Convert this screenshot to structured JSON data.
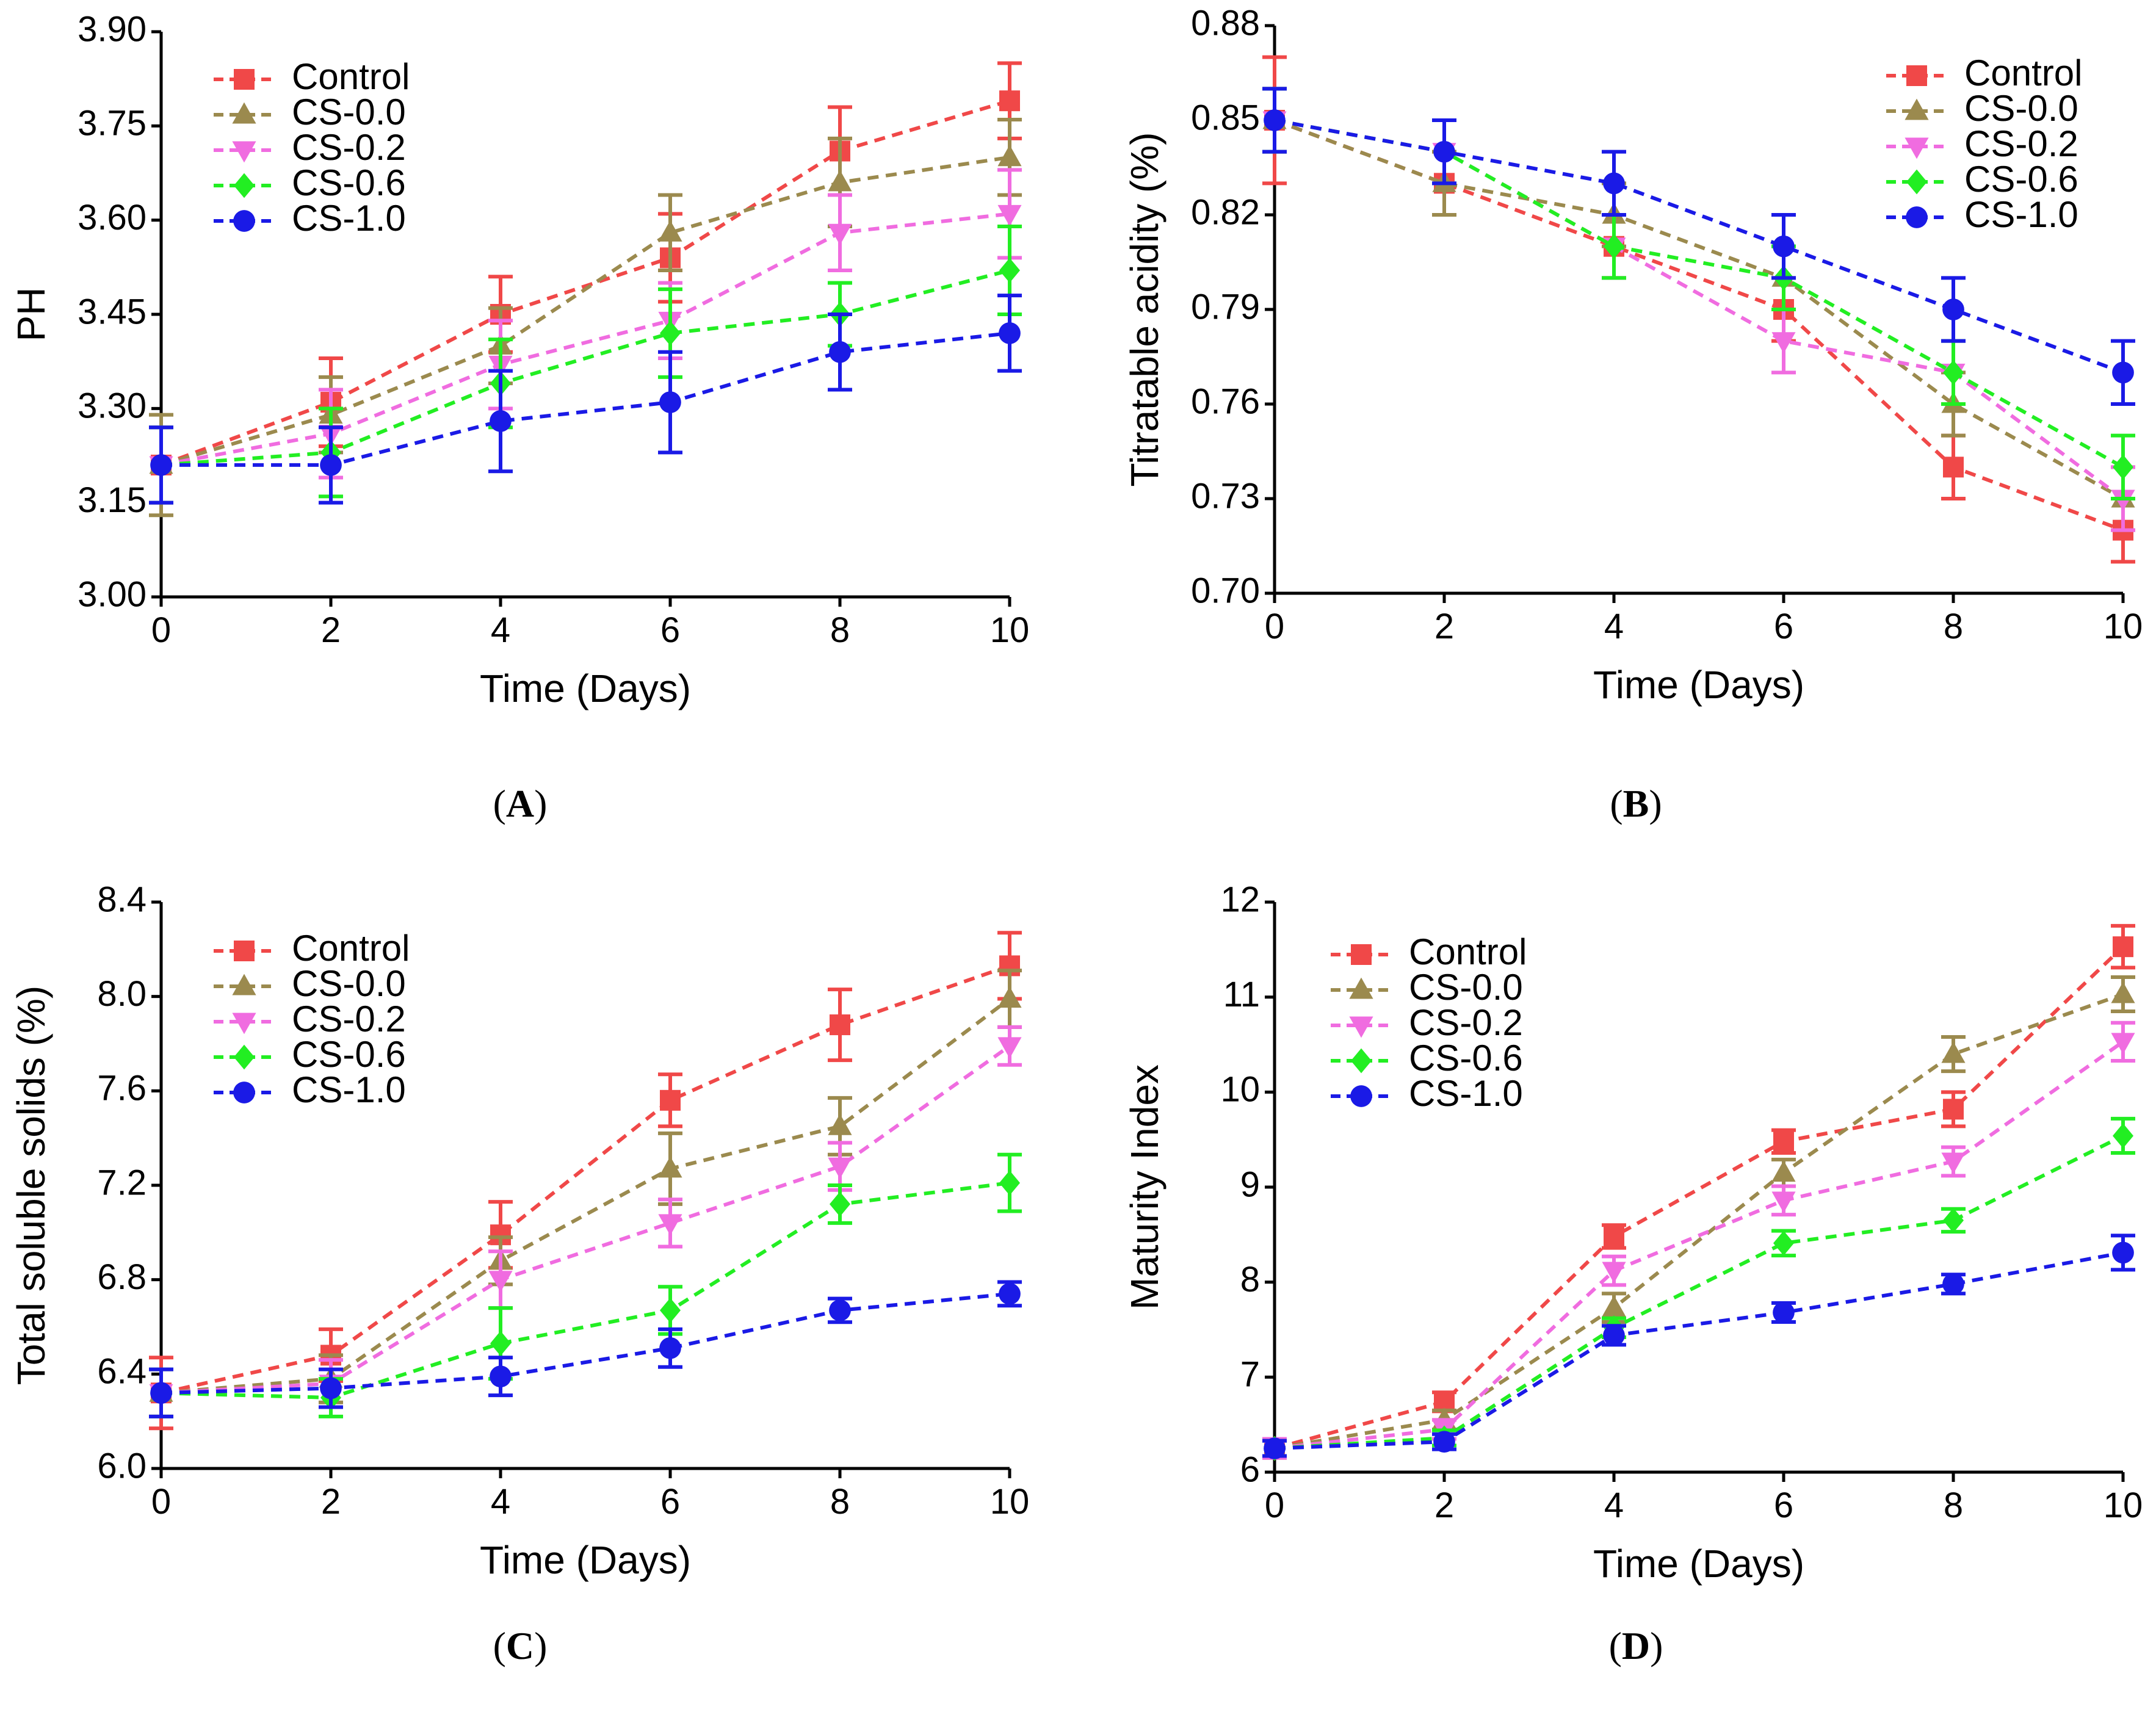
{
  "colors": {
    "Control": "#f04848",
    "CS-0.0": "#9b8a4e",
    "CS-0.2": "#f06ce0",
    "CS-0.6": "#22ee22",
    "CS-1.0": "#1a1ae6"
  },
  "markers": {
    "Control": "square",
    "CS-0.0": "triangle-up",
    "CS-0.2": "triangle-down",
    "CS-0.6": "diamond",
    "CS-1.0": "circle"
  },
  "chart_data": [
    {
      "panel": "A",
      "panel_label": "A",
      "type": "line",
      "title": "",
      "xlabel": "Time (Days)",
      "ylabel": "PH",
      "xlim": [
        0,
        10
      ],
      "ylim": [
        3.0,
        3.9
      ],
      "xticks": [
        "0",
        "2",
        "4",
        "6",
        "8",
        "10"
      ],
      "yticks": [
        "3.00",
        "3.15",
        "3.30",
        "3.45",
        "3.60",
        "3.75",
        "3.90"
      ],
      "legend": "top-left",
      "x": [
        0,
        2,
        4,
        6,
        8,
        10
      ],
      "series": [
        {
          "name": "Control",
          "values": [
            3.21,
            3.31,
            3.45,
            3.54,
            3.71,
            3.79
          ],
          "errors": [
            0.06,
            0.07,
            0.06,
            0.07,
            0.07,
            0.06
          ]
        },
        {
          "name": "CS-0.0",
          "values": [
            3.21,
            3.29,
            3.4,
            3.58,
            3.66,
            3.7
          ],
          "errors": [
            0.08,
            0.06,
            0.06,
            0.06,
            0.07,
            0.06
          ]
        },
        {
          "name": "CS-0.2",
          "values": [
            3.21,
            3.26,
            3.37,
            3.44,
            3.58,
            3.61
          ],
          "errors": [
            0.06,
            0.07,
            0.07,
            0.06,
            0.06,
            0.07
          ]
        },
        {
          "name": "CS-0.6",
          "values": [
            3.21,
            3.23,
            3.34,
            3.42,
            3.45,
            3.52
          ],
          "errors": [
            0.06,
            0.07,
            0.07,
            0.07,
            0.05,
            0.07
          ]
        },
        {
          "name": "CS-1.0",
          "values": [
            3.21,
            3.21,
            3.28,
            3.31,
            3.39,
            3.42
          ],
          "errors": [
            0.06,
            0.06,
            0.08,
            0.08,
            0.06,
            0.06
          ]
        }
      ]
    },
    {
      "panel": "B",
      "panel_label": "B",
      "type": "line",
      "title": "",
      "xlabel": "Time (Days)",
      "ylabel": "Titratable acidity (%)",
      "xlim": [
        0,
        10
      ],
      "ylim": [
        0.7,
        0.88
      ],
      "xticks": [
        "0",
        "2",
        "4",
        "6",
        "8",
        "10"
      ],
      "yticks": [
        "0.70",
        "0.73",
        "0.76",
        "0.79",
        "0.82",
        "0.85",
        "0.88"
      ],
      "legend": "top-right",
      "x": [
        0,
        2,
        4,
        6,
        8,
        10
      ],
      "series": [
        {
          "name": "Control",
          "values": [
            0.85,
            0.83,
            0.81,
            0.79,
            0.74,
            0.72
          ],
          "errors": [
            0.02,
            0.01,
            0.01,
            0.01,
            0.01,
            0.01
          ]
        },
        {
          "name": "CS-0.0",
          "values": [
            0.85,
            0.83,
            0.82,
            0.8,
            0.76,
            0.73
          ],
          "errors": [
            0.01,
            0.01,
            0.01,
            0.01,
            0.01,
            0.01
          ]
        },
        {
          "name": "CS-0.2",
          "values": [
            0.85,
            0.84,
            0.81,
            0.78,
            0.77,
            0.73
          ],
          "errors": [
            0.01,
            0.01,
            0.01,
            0.01,
            0.01,
            0.01
          ]
        },
        {
          "name": "CS-0.6",
          "values": [
            0.85,
            0.84,
            0.81,
            0.8,
            0.77,
            0.74
          ],
          "errors": [
            0.01,
            0.01,
            0.01,
            0.01,
            0.01,
            0.01
          ]
        },
        {
          "name": "CS-1.0",
          "values": [
            0.85,
            0.84,
            0.83,
            0.81,
            0.79,
            0.77
          ],
          "errors": [
            0.01,
            0.01,
            0.01,
            0.01,
            0.01,
            0.01
          ]
        }
      ]
    },
    {
      "panel": "C",
      "panel_label": "C",
      "type": "line",
      "title": "",
      "xlabel": "Time (Days)",
      "ylabel": "Total soluble solids (%)",
      "xlim": [
        0,
        10
      ],
      "ylim": [
        6.0,
        8.4
      ],
      "xticks": [
        "0",
        "2",
        "4",
        "6",
        "8",
        "10"
      ],
      "yticks": [
        "6.0",
        "6.4",
        "6.8",
        "7.2",
        "7.6",
        "8.0",
        "8.4"
      ],
      "legend": "top-left",
      "x": [
        0,
        2,
        4,
        6,
        8,
        10
      ],
      "series": [
        {
          "name": "Control",
          "values": [
            6.32,
            6.48,
            6.99,
            7.56,
            7.88,
            8.13
          ],
          "errors": [
            0.15,
            0.11,
            0.14,
            0.11,
            0.15,
            0.14
          ]
        },
        {
          "name": "CS-0.0",
          "values": [
            6.32,
            6.38,
            6.88,
            7.27,
            7.45,
            7.99
          ],
          "errors": [
            0.1,
            0.1,
            0.1,
            0.15,
            0.12,
            0.12
          ]
        },
        {
          "name": "CS-0.2",
          "values": [
            6.32,
            6.36,
            6.8,
            7.04,
            7.28,
            7.79
          ],
          "errors": [
            0.1,
            0.1,
            0.12,
            0.1,
            0.1,
            0.08
          ]
        },
        {
          "name": "CS-0.6",
          "values": [
            6.32,
            6.3,
            6.53,
            6.67,
            7.12,
            7.21
          ],
          "errors": [
            0.1,
            0.08,
            0.15,
            0.1,
            0.08,
            0.12
          ]
        },
        {
          "name": "CS-1.0",
          "values": [
            6.32,
            6.34,
            6.39,
            6.51,
            6.67,
            6.74
          ],
          "errors": [
            0.1,
            0.08,
            0.08,
            0.08,
            0.05,
            0.05
          ]
        }
      ]
    },
    {
      "panel": "D",
      "panel_label": "D",
      "type": "line",
      "title": "",
      "xlabel": "Time (Days)",
      "ylabel": "Maturity Index",
      "xlim": [
        0,
        10
      ],
      "ylim": [
        6,
        12
      ],
      "xticks": [
        "0",
        "2",
        "4",
        "6",
        "8",
        "10"
      ],
      "yticks": [
        "6",
        "7",
        "8",
        "9",
        "10",
        "11",
        "12"
      ],
      "legend": "top-left",
      "x": [
        0,
        2,
        4,
        6,
        8,
        10
      ],
      "series": [
        {
          "name": "Control",
          "values": [
            6.25,
            6.74,
            8.48,
            9.48,
            9.82,
            11.53
          ],
          "errors": [
            0.1,
            0.1,
            0.12,
            0.12,
            0.18,
            0.22
          ]
        },
        {
          "name": "CS-0.0",
          "values": [
            6.25,
            6.55,
            7.73,
            9.15,
            10.4,
            11.03
          ],
          "errors": [
            0.1,
            0.1,
            0.15,
            0.14,
            0.18,
            0.18
          ]
        },
        {
          "name": "CS-0.2",
          "values": [
            6.25,
            6.45,
            8.12,
            8.86,
            9.27,
            10.53
          ],
          "errors": [
            0.1,
            0.1,
            0.15,
            0.15,
            0.15,
            0.2
          ]
        },
        {
          "name": "CS-0.6",
          "values": [
            6.25,
            6.36,
            7.52,
            8.41,
            8.65,
            9.54
          ],
          "errors": [
            0.08,
            0.08,
            0.1,
            0.13,
            0.12,
            0.18
          ]
        },
        {
          "name": "CS-1.0",
          "values": [
            6.25,
            6.32,
            7.44,
            7.68,
            7.98,
            8.31
          ],
          "errors": [
            0.08,
            0.08,
            0.1,
            0.1,
            0.1,
            0.18
          ]
        }
      ]
    }
  ]
}
